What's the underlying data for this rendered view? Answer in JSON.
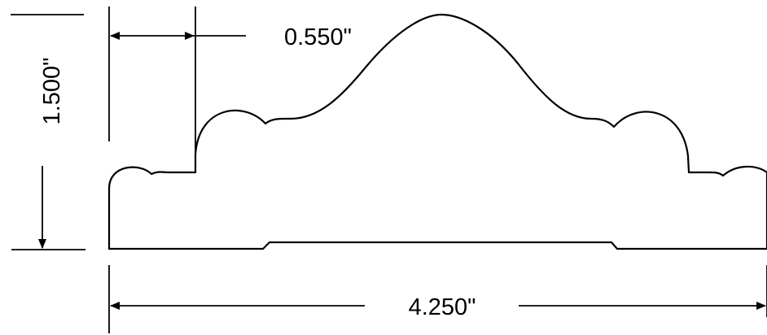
{
  "dimensions": {
    "height_label": "1.500\"",
    "step_width_label": "0.550\"",
    "total_width_label": "4.250\""
  },
  "colors": {
    "line": "#000000",
    "background": "#ffffff"
  }
}
